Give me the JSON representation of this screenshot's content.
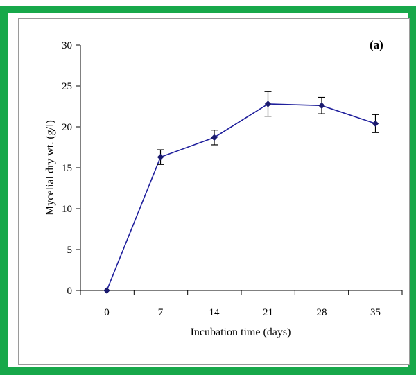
{
  "colors": {
    "frame_border": "#17a84a",
    "series": "#1f1f9c",
    "marker": "#1a1a6e"
  },
  "chart_data": {
    "type": "line",
    "panel_label": "(a)",
    "xlabel": "Incubation time (days)",
    "ylabel": "Mycelial dry wt. (g/l)",
    "categories": [
      "0",
      "7",
      "14",
      "21",
      "28",
      "35"
    ],
    "ylim": [
      0,
      30
    ],
    "yticks": [
      "0",
      "5",
      "10",
      "15",
      "20",
      "25",
      "30"
    ],
    "grid": false,
    "legend": "none",
    "series": [
      {
        "values": [
          0,
          16.3,
          18.7,
          22.8,
          22.6,
          20.4
        ],
        "errors": [
          0,
          0.9,
          0.9,
          1.5,
          1.0,
          1.1
        ]
      }
    ]
  }
}
